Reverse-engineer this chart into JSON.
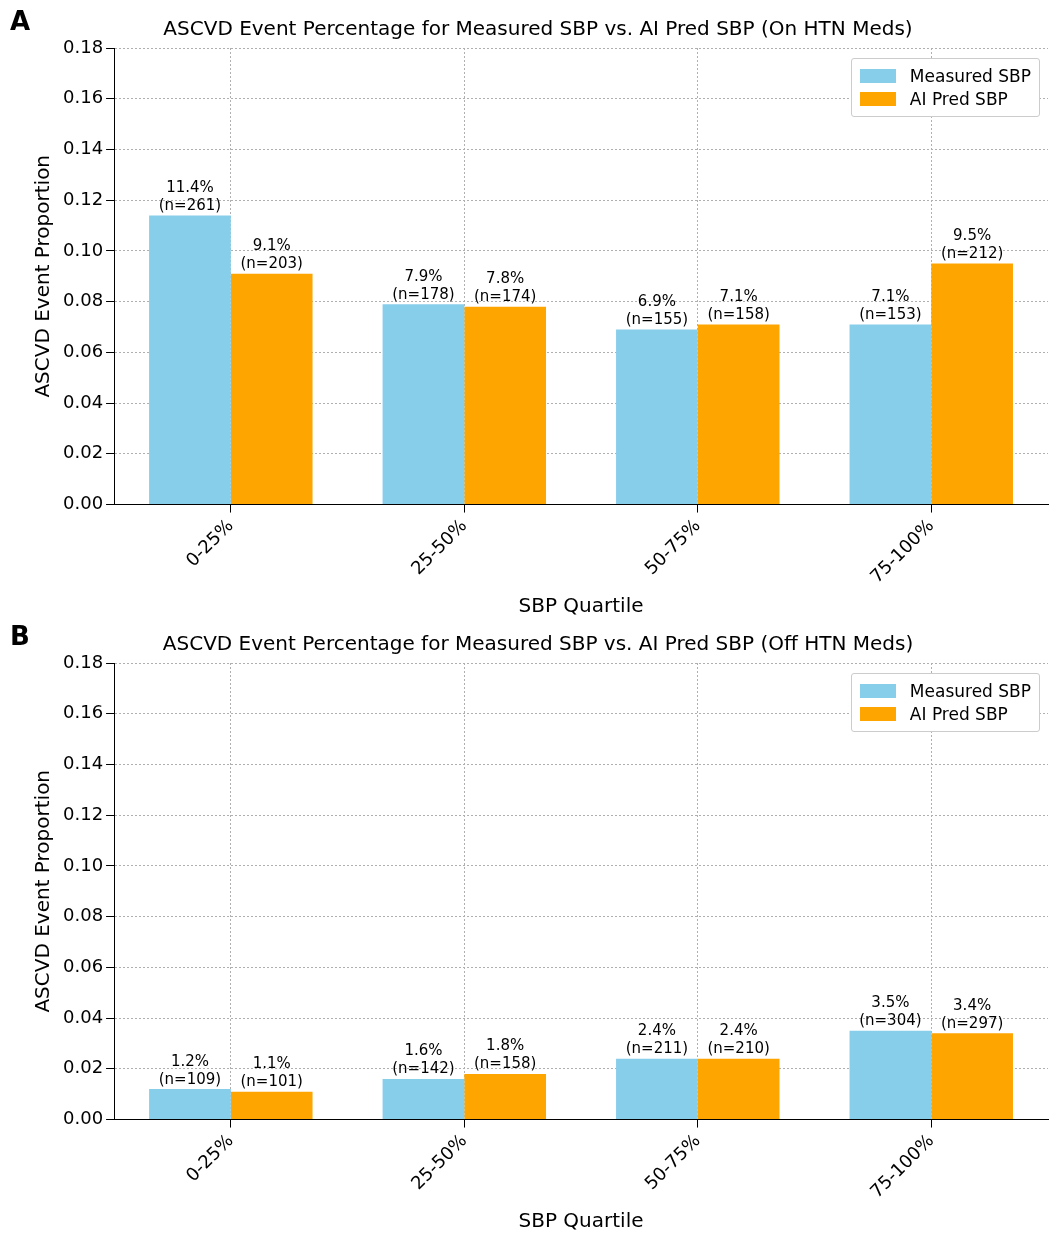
{
  "chart_data": [
    {
      "type": "bar",
      "title": "ASCVD Event Percentage for Measured SBP vs. AI Pred SBP (On HTN Meds)",
      "xlabel": "SBP Quartile",
      "ylabel": "ASCVD Event Proportion",
      "annotations": [
        "A"
      ],
      "categories": [
        "0-25%",
        "25-50%",
        "50-75%",
        "75-100%"
      ],
      "ylim": [
        0,
        0.18
      ],
      "yticks": [
        {
          "value": 0,
          "label": "0.00"
        },
        {
          "value": 0.02,
          "label": "0.02"
        },
        {
          "value": 0.04,
          "label": "0.04"
        },
        {
          "value": 0.06,
          "label": "0.06"
        },
        {
          "value": 0.08,
          "label": "0.08"
        },
        {
          "value": 0.1,
          "label": "0.10"
        },
        {
          "value": 0.12,
          "label": "0.12"
        },
        {
          "value": 0.14,
          "label": "0.14"
        },
        {
          "value": 0.16,
          "label": "0.16"
        },
        {
          "value": 0.18,
          "label": "0.18"
        }
      ],
      "grid": true,
      "legend": "top right",
      "series": [
        {
          "name": "Measured SBP",
          "color": "#87ceeb",
          "values": [
            0.114,
            0.079,
            0.069,
            0.071
          ],
          "value_labels": [
            "11.4%\n(n=261)",
            "7.9%\n(n=178)",
            "6.9%\n(n=155)",
            "7.1%\n(n=153)"
          ]
        },
        {
          "name": "AI Pred SBP",
          "color": "#ffa500",
          "values": [
            0.091,
            0.078,
            0.071,
            0.095
          ],
          "value_labels": [
            "9.1%\n(n=203)",
            "7.8%\n(n=174)",
            "7.1%\n(n=158)",
            "9.5%\n(n=212)"
          ]
        }
      ]
    },
    {
      "type": "bar",
      "title": "ASCVD Event Percentage for Measured SBP vs. AI Pred SBP (Off HTN Meds)",
      "xlabel": "SBP Quartile",
      "ylabel": "ASCVD Event Proportion",
      "annotations": [
        "B"
      ],
      "categories": [
        "0-25%",
        "25-50%",
        "50-75%",
        "75-100%"
      ],
      "ylim": [
        0,
        0.18
      ],
      "yticks": [
        {
          "value": 0,
          "label": "0.00"
        },
        {
          "value": 0.02,
          "label": "0.02"
        },
        {
          "value": 0.04,
          "label": "0.04"
        },
        {
          "value": 0.06,
          "label": "0.06"
        },
        {
          "value": 0.08,
          "label": "0.08"
        },
        {
          "value": 0.1,
          "label": "0.10"
        },
        {
          "value": 0.12,
          "label": "0.12"
        },
        {
          "value": 0.14,
          "label": "0.14"
        },
        {
          "value": 0.16,
          "label": "0.16"
        },
        {
          "value": 0.18,
          "label": "0.18"
        }
      ],
      "grid": true,
      "legend": "top right",
      "series": [
        {
          "name": "Measured SBP",
          "color": "#87ceeb",
          "values": [
            0.012,
            0.016,
            0.024,
            0.035
          ],
          "value_labels": [
            "1.2%\n(n=109)",
            "1.6%\n(n=142)",
            "2.4%\n(n=211)",
            "3.5%\n(n=304)"
          ]
        },
        {
          "name": "AI Pred SBP",
          "color": "#ffa500",
          "values": [
            0.011,
            0.018,
            0.024,
            0.034
          ],
          "value_labels": [
            "1.1%\n(n=101)",
            "1.8%\n(n=158)",
            "2.4%\n(n=210)",
            "3.4%\n(n=297)"
          ]
        }
      ]
    }
  ]
}
